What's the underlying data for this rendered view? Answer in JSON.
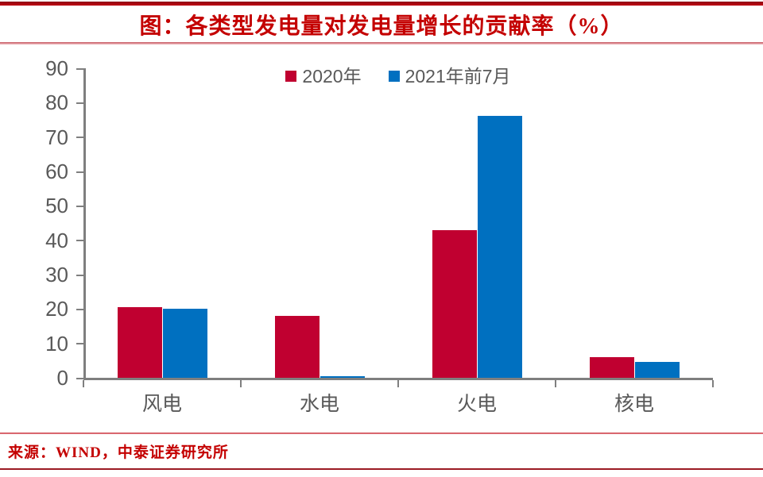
{
  "header": {
    "title": "图：各类型发电量对发电量增长的贡献率（%）"
  },
  "footer": {
    "source": "来源：WIND，中泰证券研究所"
  },
  "colors": {
    "series_2020_red": "#C00030",
    "series_2021_blue": "#0070C0",
    "title_red": "#C40000",
    "axis_gray": "#7F7F7F",
    "text_gray": "#595959"
  },
  "chart_data": {
    "type": "bar",
    "title": "图：各类型发电量对发电量增长的贡献率（%）",
    "categories": [
      "风电",
      "水电",
      "火电",
      "核电"
    ],
    "series": [
      {
        "name": "2020年",
        "color": "#C00030",
        "values": [
          20.6,
          17.9,
          43.0,
          5.9
        ]
      },
      {
        "name": "2021年前7月",
        "color": "#0070C0",
        "values": [
          20.0,
          0.4,
          76.2,
          4.6
        ]
      }
    ],
    "xlabel": "",
    "ylabel": "",
    "ylim": [
      0,
      90
    ],
    "yticks": [
      0,
      10,
      20,
      30,
      40,
      50,
      60,
      70,
      80,
      90
    ],
    "grid": false,
    "legend_position": "top-center"
  }
}
